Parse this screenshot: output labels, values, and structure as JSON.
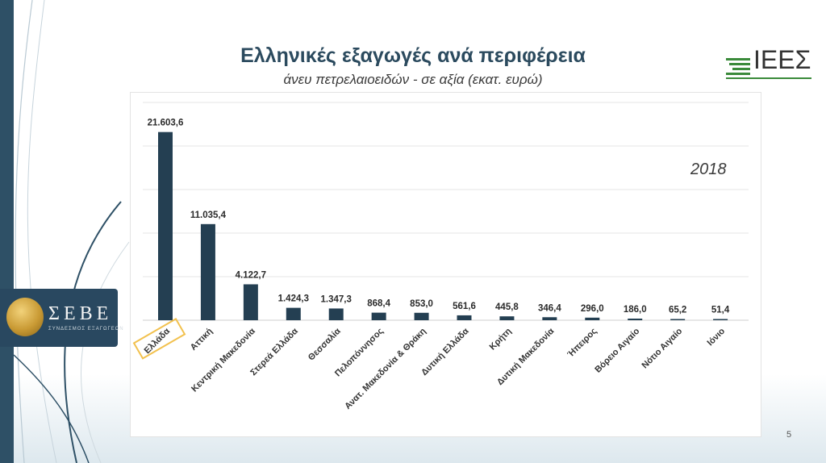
{
  "slide": {
    "title": "Ελληνικές εξαγωγές ανά περιφέρεια",
    "subtitle": "άνευ πετρελαιοειδών - σε αξία (εκατ. ευρώ)",
    "page_number": "5",
    "year_annotation": "2018",
    "left_logo_text": "ΣΕΒΕ",
    "left_logo_subtitle": "ΣΥΝΔΕΣΜΟΣ ΕΞΑΓΩΓΕΩΝ",
    "right_logo_text": "ΙΕΕΣ"
  },
  "colors": {
    "bar": "#243f52",
    "highlight_box": "#f2c14e",
    "title": "#2b4a5e",
    "gridline": "#e6e6e6"
  },
  "chart_data": {
    "type": "bar",
    "title": "",
    "xlabel": "",
    "ylabel": "",
    "ylim": [
      0,
      25000
    ],
    "grid": true,
    "highlighted_category": "Ελλάδα",
    "categories": [
      "Ελλάδα",
      "Αττική",
      "Κεντρική Μακεδονία",
      "Στερεά Ελλάδα",
      "Θεσσαλία",
      "Πελοπόννησος",
      "Ανατ. Μακεδονία & Θράκη",
      "Δυτική Ελλάδα",
      "Κρήτη",
      "Δυτική Μακεδονία",
      "Ήπειρος",
      "Βόρειο Αιγαίο",
      "Νότιο Αιγαίο",
      "Ιόνιο"
    ],
    "values": [
      21603.6,
      11035.4,
      4122.7,
      1424.3,
      1347.3,
      868.4,
      853.0,
      561.6,
      445.8,
      346.4,
      296.0,
      186.0,
      65.2,
      51.4
    ],
    "value_labels": [
      "21.603,6",
      "11.035,4",
      "4.122,7",
      "1.424,3",
      "1.347,3",
      "868,4",
      "853,0",
      "561,6",
      "445,8",
      "346,4",
      "296,0",
      "186,0",
      "65,2",
      "51,4"
    ]
  }
}
